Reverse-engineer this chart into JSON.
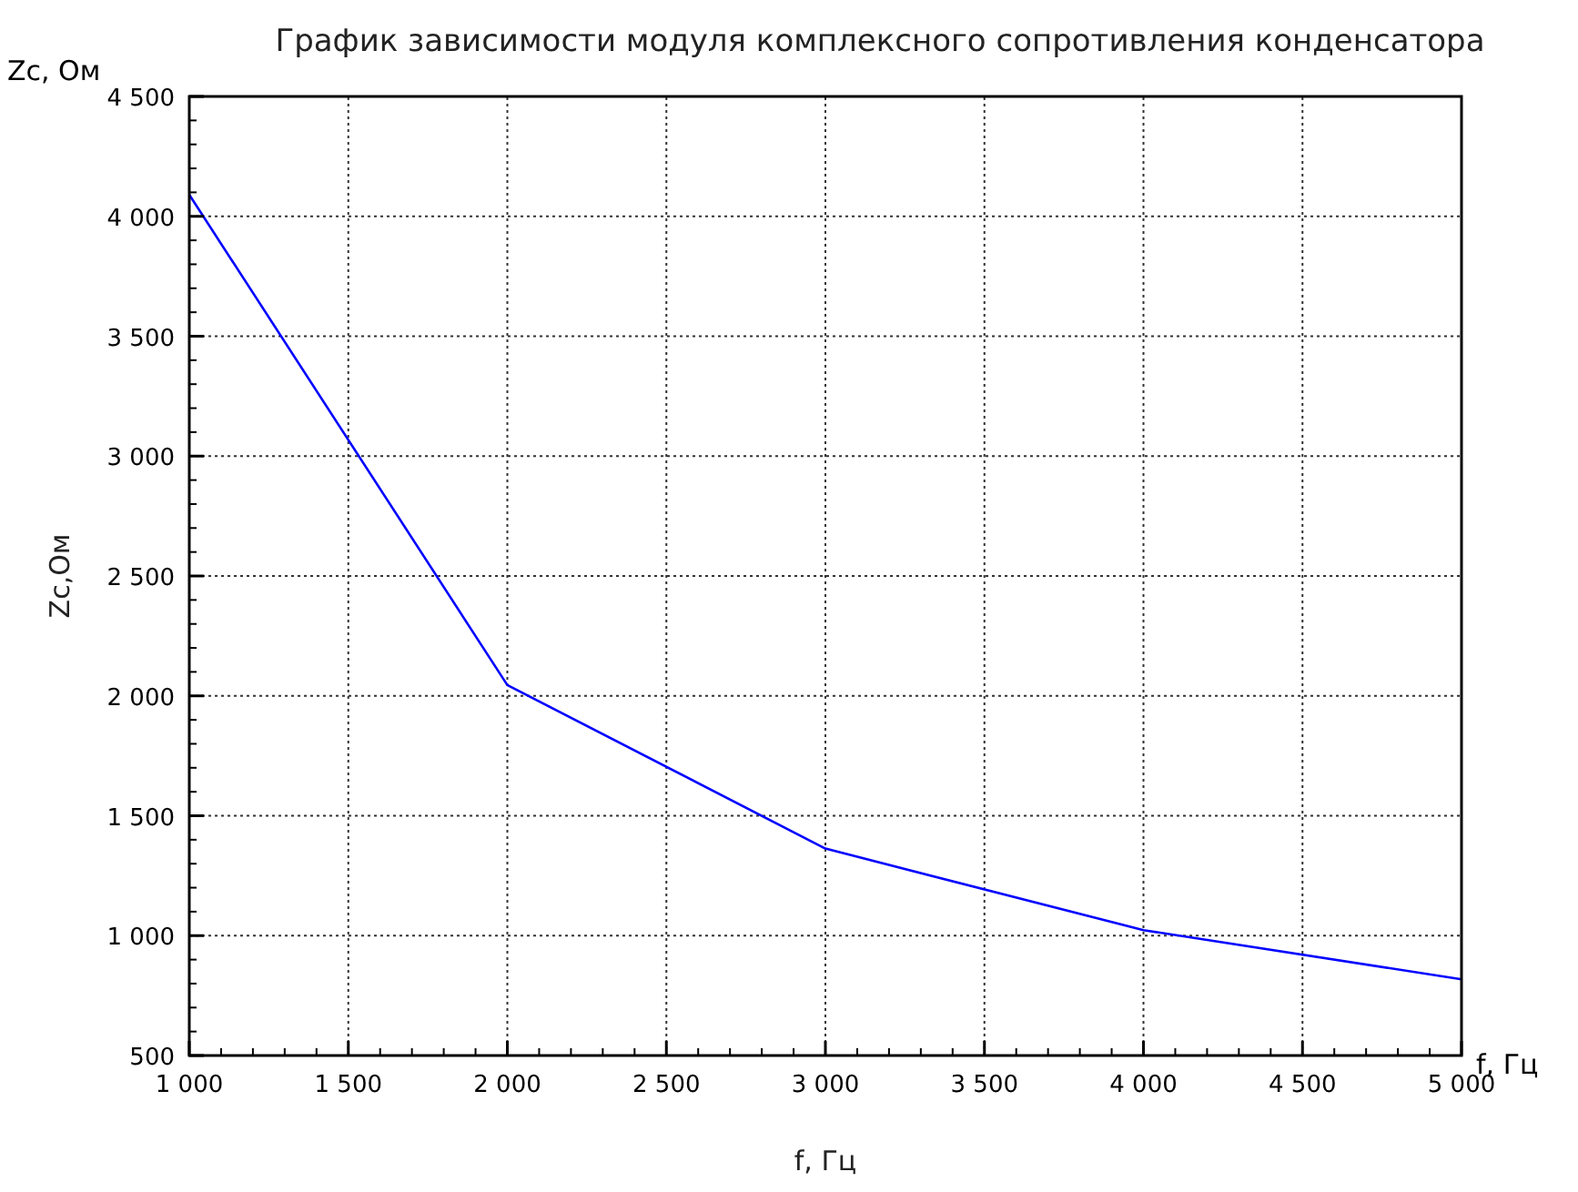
{
  "chart_data": {
    "type": "line",
    "title": "График зависимости модуля комплексного сопротивления конденсатора",
    "xlabel": "f, Гц",
    "ylabel": "Zc,Ом",
    "annotations": [
      "Zc, Ом",
      "f, Гц"
    ],
    "x": [
      1000,
      2000,
      3000,
      4000,
      5000
    ],
    "series": [
      {
        "color": "#0000ff",
        "values": [
          4090,
          2045,
          1363,
          1023,
          818
        ]
      }
    ],
    "xlim": [
      1000,
      5000
    ],
    "ylim": [
      500,
      4500
    ],
    "xticks": [
      {
        "value": 1000,
        "label": "1 000"
      },
      {
        "value": 1500,
        "label": "1 500"
      },
      {
        "value": 2000,
        "label": "2 000"
      },
      {
        "value": 2500,
        "label": "2 500"
      },
      {
        "value": 3000,
        "label": "3 000"
      },
      {
        "value": 3500,
        "label": "3 500"
      },
      {
        "value": 4000,
        "label": "4 000"
      },
      {
        "value": 4500,
        "label": "4 500"
      },
      {
        "value": 5000,
        "label": "5 000"
      }
    ],
    "yticks": [
      500,
      {
        "value": 1000,
        "label": "1 000"
      },
      {
        "value": 1500,
        "label": "1 500"
      },
      {
        "value": 2000,
        "label": "2 000"
      },
      {
        "value": 2500,
        "label": "2 500"
      },
      {
        "value": 3000,
        "label": "3 000"
      },
      {
        "value": 3500,
        "label": "3 500"
      },
      {
        "value": 4000,
        "label": "4 000"
      },
      {
        "value": 4500,
        "label": "4 500"
      }
    ],
    "grid": true,
    "line_style": "solid",
    "marker": "none"
  }
}
